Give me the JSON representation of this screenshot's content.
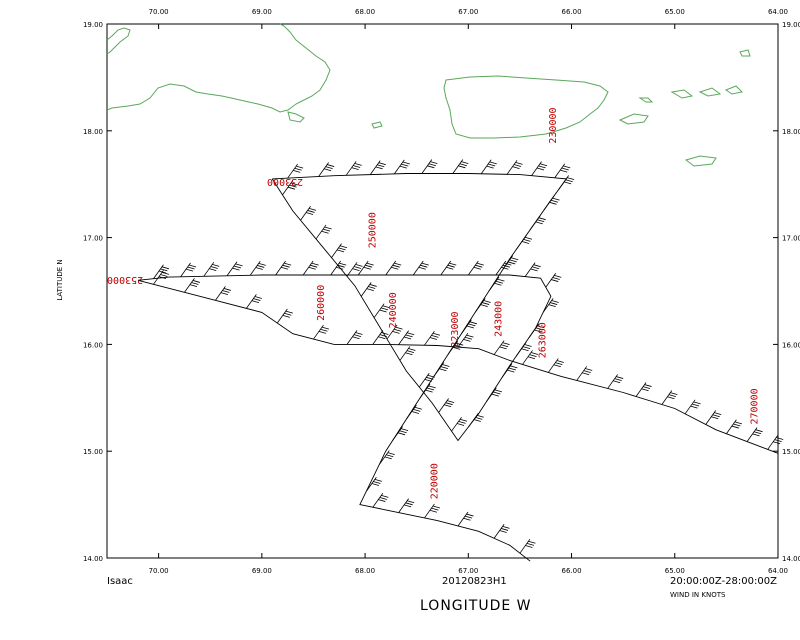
{
  "map": {
    "projection": "lat-lon",
    "lon_range": [
      -70.5,
      -64.0
    ],
    "lat_range": [
      14.0,
      19.0
    ],
    "xlabel": "LONGITUDE   W",
    "ylabel": "LATITUDE   N",
    "lon_ticks": [
      "70.00",
      "69.00",
      "68.00",
      "67.00",
      "66.00",
      "65.00",
      "64.00"
    ],
    "lat_ticks": [
      "19.00",
      "18.00",
      "17.00",
      "16.00",
      "15.00",
      "14.00"
    ],
    "coast_color": "#5aa85a",
    "label_color": "#c00000"
  },
  "footer": {
    "storm": "Isaac",
    "mission": "20120823H1",
    "time_range": "20:00:00Z-28:00:00Z",
    "wind_units": "WIND IN KNOTS"
  },
  "time_labels": [
    {
      "text": "230000",
      "lon": -66.15,
      "lat": 17.88
    },
    {
      "text": "233000",
      "lon": -68.95,
      "lat": 17.55
    },
    {
      "text": "250000",
      "lon": -67.9,
      "lat": 16.9
    },
    {
      "text": "253000",
      "lon": -70.5,
      "lat": 16.63
    },
    {
      "text": "260000",
      "lon": -68.4,
      "lat": 16.22
    },
    {
      "text": "240000",
      "lon": -67.7,
      "lat": 16.15
    },
    {
      "text": "223000",
      "lon": -67.1,
      "lat": 15.97
    },
    {
      "text": "243000",
      "lon": -66.68,
      "lat": 16.07
    },
    {
      "text": "263000",
      "lon": -66.25,
      "lat": 15.87
    },
    {
      "text": "270000",
      "lon": -64.2,
      "lat": 15.25
    },
    {
      "text": "220000",
      "lon": -67.3,
      "lat": 14.55
    }
  ],
  "track": [
    [
      -68.9,
      17.55
    ],
    [
      -68.3,
      17.58
    ],
    [
      -67.6,
      17.6
    ],
    [
      -67.0,
      17.6
    ],
    [
      -66.5,
      17.59
    ],
    [
      -66.05,
      17.55
    ],
    [
      -66.2,
      17.35
    ],
    [
      -66.5,
      16.95
    ],
    [
      -66.85,
      16.45
    ],
    [
      -67.1,
      16.05
    ],
    [
      -67.3,
      15.75
    ],
    [
      -67.5,
      15.45
    ],
    [
      -67.7,
      15.2
    ],
    [
      -67.85,
      14.95
    ],
    [
      -68.0,
      14.65
    ],
    [
      -68.05,
      14.48
    ],
    [
      -67.8,
      14.45
    ],
    [
      -67.5,
      14.4
    ],
    [
      -67.2,
      14.33
    ],
    [
      -66.9,
      14.25
    ],
    [
      -66.6,
      14.15
    ],
    [
      -66.4,
      13.97
    ],
    [
      -66.55,
      14.05
    ],
    [
      -66.9,
      14.25
    ],
    [
      -66.6,
      14.15
    ],
    [
      -66.4,
      13.97
    ]
  ],
  "track_segments": [
    [
      [
        -68.9,
        17.55
      ],
      [
        -68.3,
        17.58
      ],
      [
        -67.6,
        17.6
      ],
      [
        -67.0,
        17.6
      ],
      [
        -66.5,
        17.59
      ],
      [
        -66.05,
        17.55
      ],
      [
        -66.2,
        17.35
      ],
      [
        -66.6,
        16.8
      ],
      [
        -67.0,
        16.2
      ],
      [
        -67.4,
        15.6
      ],
      [
        -67.8,
        15.0
      ],
      [
        -68.05,
        14.5
      ],
      [
        -67.8,
        14.45
      ],
      [
        -67.3,
        14.35
      ],
      [
        -66.9,
        14.25
      ],
      [
        -66.6,
        14.12
      ],
      [
        -66.4,
        13.97
      ]
    ],
    [
      [
        -68.9,
        17.55
      ],
      [
        -68.7,
        17.25
      ],
      [
        -68.4,
        16.9
      ],
      [
        -68.1,
        16.55
      ],
      [
        -67.85,
        16.15
      ],
      [
        -67.6,
        15.75
      ],
      [
        -67.35,
        15.45
      ],
      [
        -67.1,
        15.1
      ],
      [
        -66.9,
        15.35
      ],
      [
        -66.6,
        15.8
      ],
      [
        -66.35,
        16.15
      ],
      [
        -66.2,
        16.45
      ],
      [
        -66.3,
        16.62
      ],
      [
        -66.6,
        16.65
      ],
      [
        -67.4,
        16.65
      ],
      [
        -68.2,
        16.65
      ],
      [
        -69.0,
        16.65
      ],
      [
        -69.9,
        16.63
      ],
      [
        -70.2,
        16.6
      ]
    ],
    [
      [
        -70.2,
        16.6
      ],
      [
        -69.6,
        16.45
      ],
      [
        -69.0,
        16.3
      ],
      [
        -68.7,
        16.1
      ],
      [
        -68.3,
        16.0
      ],
      [
        -67.8,
        16.0
      ],
      [
        -67.3,
        15.99
      ],
      [
        -66.9,
        15.96
      ],
      [
        -66.6,
        15.85
      ],
      [
        -66.1,
        15.7
      ],
      [
        -65.5,
        15.55
      ],
      [
        -65.0,
        15.4
      ],
      [
        -64.6,
        15.2
      ],
      [
        -64.0,
        14.98
      ]
    ]
  ]
}
